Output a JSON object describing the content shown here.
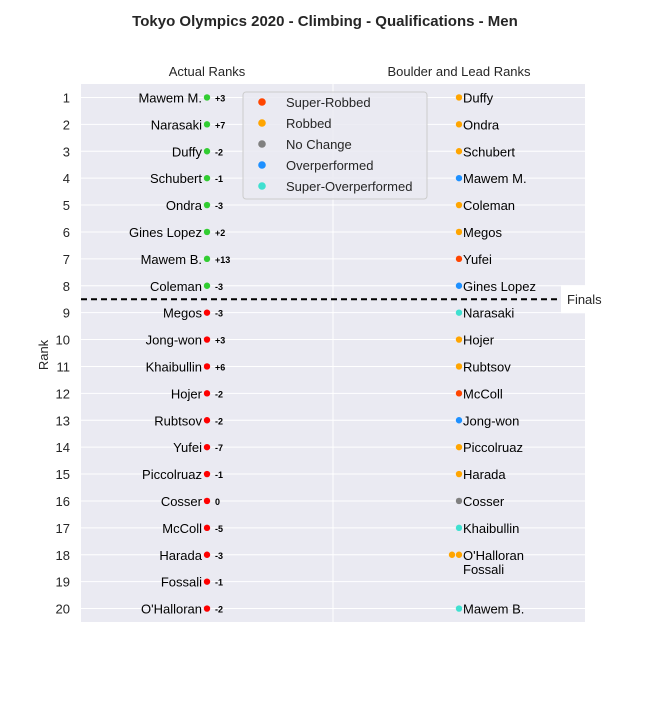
{
  "chart_data": {
    "type": "scatter",
    "title": "Tokyo Olympics 2020 - Climbing - Qualifications - Men",
    "ylabel": "Rank",
    "columns": [
      "Actual Ranks",
      "Boulder and Lead Ranks"
    ],
    "ranks": [
      1,
      2,
      3,
      4,
      5,
      6,
      7,
      8,
      9,
      10,
      11,
      12,
      13,
      14,
      15,
      16,
      17,
      18,
      19,
      20
    ],
    "ylim": [
      0.5,
      20.5
    ],
    "finals_label": "Finals",
    "finals_cutoff": 8.5,
    "legend_location": "top-center",
    "grid": true,
    "categories": [
      {
        "name": "Super-Robbed",
        "color": "#FF4500"
      },
      {
        "name": "Robbed",
        "color": "#FFA500"
      },
      {
        "name": "No Change",
        "color": "#808080"
      },
      {
        "name": "Overperformed",
        "color": "#1E90FF"
      },
      {
        "name": "Super-Overperformed",
        "color": "#40E0D0"
      }
    ],
    "actual": [
      {
        "rank": 1,
        "name": "Mawem M.",
        "delta": "+3",
        "color": "#32CD32"
      },
      {
        "rank": 2,
        "name": "Narasaki",
        "delta": "+7",
        "color": "#32CD32"
      },
      {
        "rank": 3,
        "name": "Duffy",
        "delta": "-2",
        "color": "#32CD32"
      },
      {
        "rank": 4,
        "name": "Schubert",
        "delta": "-1",
        "color": "#32CD32"
      },
      {
        "rank": 5,
        "name": "Ondra",
        "delta": "-3",
        "color": "#32CD32"
      },
      {
        "rank": 6,
        "name": "Gines Lopez",
        "delta": "+2",
        "color": "#32CD32"
      },
      {
        "rank": 7,
        "name": "Mawem B.",
        "delta": "+13",
        "color": "#32CD32"
      },
      {
        "rank": 8,
        "name": "Coleman",
        "delta": "-3",
        "color": "#32CD32"
      },
      {
        "rank": 9,
        "name": "Megos",
        "delta": "-3",
        "color": "#FF0000"
      },
      {
        "rank": 10,
        "name": "Jong-won",
        "delta": "+3",
        "color": "#FF0000"
      },
      {
        "rank": 11,
        "name": "Khaibullin",
        "delta": "+6",
        "color": "#FF0000"
      },
      {
        "rank": 12,
        "name": "Hojer",
        "delta": "-2",
        "color": "#FF0000"
      },
      {
        "rank": 13,
        "name": "Rubtsov",
        "delta": "-2",
        "color": "#FF0000"
      },
      {
        "rank": 14,
        "name": "Yufei",
        "delta": "-7",
        "color": "#FF0000"
      },
      {
        "rank": 15,
        "name": "Piccolruaz",
        "delta": "-1",
        "color": "#FF0000"
      },
      {
        "rank": 16,
        "name": "Cosser",
        "delta": "0",
        "color": "#FF0000"
      },
      {
        "rank": 17,
        "name": "McColl",
        "delta": "-5",
        "color": "#FF0000"
      },
      {
        "rank": 18,
        "name": "Harada",
        "delta": "-3",
        "color": "#FF0000"
      },
      {
        "rank": 19,
        "name": "Fossali",
        "delta": "-1",
        "color": "#FF0000"
      },
      {
        "rank": 20,
        "name": "O'Halloran",
        "delta": "-2",
        "color": "#FF0000"
      }
    ],
    "boulder_lead": [
      {
        "rank": 1,
        "label": "Duffy",
        "colors": [
          "#FFA500"
        ]
      },
      {
        "rank": 2,
        "label": "Ondra",
        "colors": [
          "#FFA500"
        ]
      },
      {
        "rank": 3,
        "label": "Schubert",
        "colors": [
          "#FFA500"
        ]
      },
      {
        "rank": 4,
        "label": "Mawem M.",
        "colors": [
          "#1E90FF"
        ]
      },
      {
        "rank": 5,
        "label": "Coleman",
        "colors": [
          "#FFA500"
        ]
      },
      {
        "rank": 6,
        "label": "Megos",
        "colors": [
          "#FFA500"
        ]
      },
      {
        "rank": 7,
        "label": "Yufei",
        "colors": [
          "#FF4500"
        ]
      },
      {
        "rank": 8,
        "label": "Gines Lopez",
        "colors": [
          "#1E90FF"
        ]
      },
      {
        "rank": 9,
        "label": "Narasaki",
        "colors": [
          "#40E0D0"
        ]
      },
      {
        "rank": 10,
        "label": "Hojer",
        "colors": [
          "#FFA500"
        ]
      },
      {
        "rank": 11,
        "label": "Rubtsov",
        "colors": [
          "#FFA500"
        ]
      },
      {
        "rank": 12,
        "label": "McColl",
        "colors": [
          "#FF4500"
        ]
      },
      {
        "rank": 13,
        "label": "Jong-won",
        "colors": [
          "#1E90FF"
        ]
      },
      {
        "rank": 14,
        "label": "Piccolruaz",
        "colors": [
          "#FFA500"
        ]
      },
      {
        "rank": 15,
        "label": "Harada",
        "colors": [
          "#FFA500"
        ]
      },
      {
        "rank": 16,
        "label": "Cosser",
        "colors": [
          "#808080"
        ]
      },
      {
        "rank": 17,
        "label": "Khaibullin",
        "colors": [
          "#40E0D0"
        ]
      },
      {
        "rank": 18,
        "label": "O'Halloran\nFossali",
        "colors": [
          "#FFA500",
          "#FFA500"
        ]
      },
      {
        "rank": 20,
        "label": "Mawem B.",
        "colors": [
          "#40E0D0"
        ]
      }
    ]
  }
}
